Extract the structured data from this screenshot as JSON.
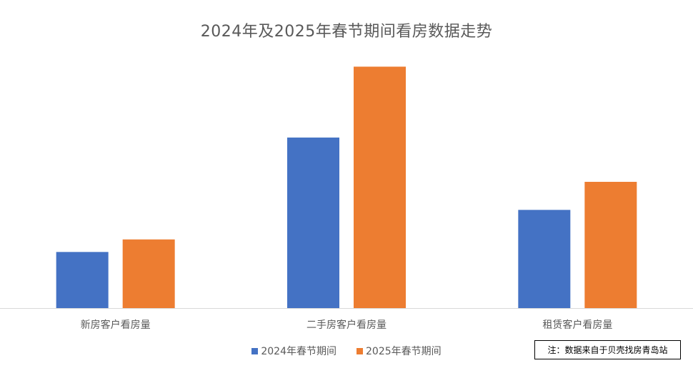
{
  "chart_data": {
    "type": "bar",
    "title": "2024年及2025年春节期间看房数据走势",
    "xlabel": "",
    "ylabel": "",
    "categories": [
      "新房客户看房量",
      "二手房客户看房量",
      "租赁客户看房量"
    ],
    "series": [
      {
        "name": "2024年春节期间",
        "values": [
          76,
          231,
          133
        ],
        "color": "#4472C4"
      },
      {
        "name": "2025年春节期间",
        "values": [
          93,
          327,
          171
        ],
        "color": "#ED7D31"
      }
    ],
    "ylim": [
      0,
      340
    ],
    "grid": false,
    "y_axis_visible": false,
    "legend_position": "bottom"
  },
  "note": "注：数据来自于贝壳找房青岛站"
}
